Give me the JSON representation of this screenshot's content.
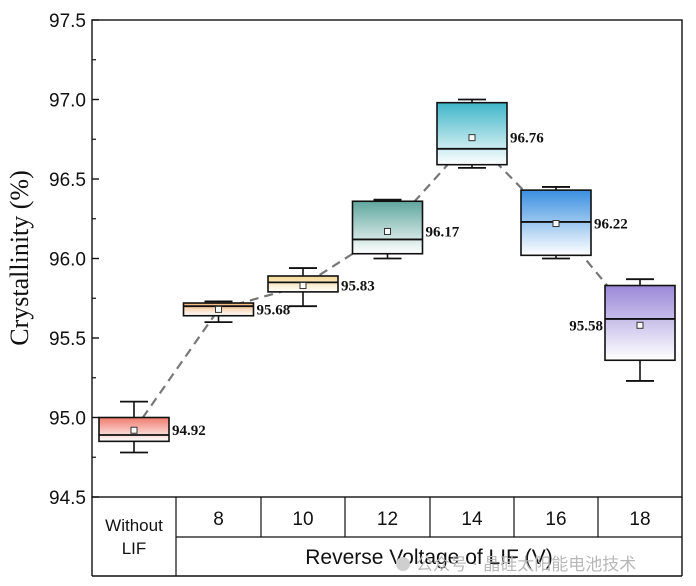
{
  "chart_data": {
    "type": "box",
    "title": "",
    "ylabel": "Crystallinity (%)",
    "xlabel": "Reverse Voltage of LIF (V)",
    "ylim": [
      94.5,
      97.5
    ],
    "yticks": [
      "94.5",
      "95.0",
      "95.5",
      "96.0",
      "96.5",
      "97.0",
      "97.5"
    ],
    "categories": [
      {
        "label_lines": [
          "Without",
          "LIF"
        ],
        "group": "none"
      },
      {
        "label": "8",
        "group": "lif"
      },
      {
        "label": "10",
        "group": "lif"
      },
      {
        "label": "12",
        "group": "lif"
      },
      {
        "label": "14",
        "group": "lif"
      },
      {
        "label": "16",
        "group": "lif"
      },
      {
        "label": "18",
        "group": "lif"
      }
    ],
    "boxes": [
      {
        "min": 94.78,
        "q1": 94.85,
        "median": 94.89,
        "q3": 95.0,
        "max": 95.1,
        "mean": 94.92,
        "mean_label": "94.92",
        "color": "#f07a6e",
        "label_side": "right"
      },
      {
        "min": 95.6,
        "q1": 95.64,
        "median": 95.7,
        "q3": 95.72,
        "max": 95.73,
        "mean": 95.68,
        "mean_label": "95.68",
        "color": "#f2b478",
        "label_side": "right"
      },
      {
        "min": 95.7,
        "q1": 95.79,
        "median": 95.85,
        "q3": 95.89,
        "max": 95.94,
        "mean": 95.83,
        "mean_label": "95.83",
        "color": "#f3d690",
        "label_side": "right"
      },
      {
        "min": 96.0,
        "q1": 96.03,
        "median": 96.12,
        "q3": 96.36,
        "max": 96.37,
        "mean": 96.17,
        "mean_label": "96.17",
        "color": "#5fa69e",
        "label_side": "right"
      },
      {
        "min": 96.57,
        "q1": 96.59,
        "median": 96.69,
        "q3": 96.98,
        "max": 97.0,
        "mean": 96.76,
        "mean_label": "96.76",
        "color": "#3fb6c8",
        "label_side": "right"
      },
      {
        "min": 96.0,
        "q1": 96.02,
        "median": 96.23,
        "q3": 96.43,
        "max": 96.45,
        "mean": 96.22,
        "mean_label": "96.22",
        "color": "#3a8fe0",
        "label_side": "right"
      },
      {
        "min": 95.23,
        "q1": 95.36,
        "median": 95.62,
        "q3": 95.83,
        "max": 95.87,
        "mean": 95.58,
        "mean_label": "95.58",
        "color": "#9a88d8",
        "label_side": "left"
      }
    ],
    "mean_line": {
      "style": "dashed",
      "color": "#777777"
    },
    "grid": false,
    "legend": "none"
  },
  "watermark": "公众号 · 晶硅太阳能电池技术"
}
